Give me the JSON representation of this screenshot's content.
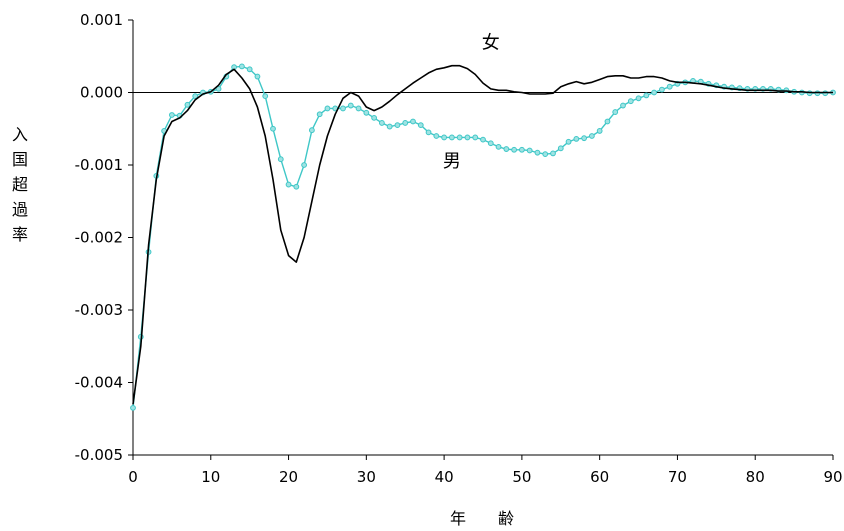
{
  "chart_data": {
    "type": "line",
    "title": "",
    "xlabel": "年　　齢",
    "ylabel": "入国超過率",
    "xlim": [
      0,
      90
    ],
    "ylim": [
      -0.005,
      0.001
    ],
    "xticks": [
      0,
      10,
      20,
      30,
      40,
      50,
      60,
      70,
      80,
      90
    ],
    "xtick_labels": [
      "0",
      "10",
      "20",
      "30",
      "40",
      "50",
      "60",
      "70",
      "80",
      "90"
    ],
    "yticks": [
      0.001,
      0.0,
      -0.001,
      -0.002,
      -0.003,
      -0.004,
      -0.005
    ],
    "ytick_labels": [
      "0.001",
      "0.000",
      "-0.001",
      "-0.002",
      "-0.003",
      "-0.004",
      "-0.005"
    ],
    "zero_line": true,
    "grid": false,
    "series": [
      {
        "name": "女",
        "color": "#000000",
        "marker": "none",
        "label_at": [
          46,
          0.00061
        ],
        "points": [
          [
            0,
            -0.0043
          ],
          [
            1,
            -0.0035
          ],
          [
            2,
            -0.0021
          ],
          [
            3,
            -0.0012
          ],
          [
            4,
            -0.0006
          ],
          [
            5,
            -0.0004
          ],
          [
            6,
            -0.00035
          ],
          [
            7,
            -0.00025
          ],
          [
            8,
            -0.0001
          ],
          [
            9,
            -2e-05
          ],
          [
            10,
            1e-05
          ],
          [
            11,
            0.0001
          ],
          [
            12,
            0.00025
          ],
          [
            13,
            0.00032
          ],
          [
            14,
            0.0002
          ],
          [
            15,
            5e-05
          ],
          [
            16,
            -0.0002
          ],
          [
            17,
            -0.0006
          ],
          [
            18,
            -0.0012
          ],
          [
            19,
            -0.0019
          ],
          [
            20,
            -0.00225
          ],
          [
            21,
            -0.00234
          ],
          [
            22,
            -0.002
          ],
          [
            23,
            -0.0015
          ],
          [
            24,
            -0.001
          ],
          [
            25,
            -0.0006
          ],
          [
            26,
            -0.0003
          ],
          [
            27,
            -8e-05
          ],
          [
            28,
            0.0
          ],
          [
            29,
            -5e-05
          ],
          [
            30,
            -0.0002
          ],
          [
            31,
            -0.00025
          ],
          [
            32,
            -0.0002
          ],
          [
            33,
            -0.00012
          ],
          [
            34,
            -3e-05
          ],
          [
            35,
            5e-05
          ],
          [
            36,
            0.00013
          ],
          [
            37,
            0.0002
          ],
          [
            38,
            0.00027
          ],
          [
            39,
            0.00032
          ],
          [
            40,
            0.00034
          ],
          [
            41,
            0.00037
          ],
          [
            42,
            0.00037
          ],
          [
            43,
            0.00033
          ],
          [
            44,
            0.00025
          ],
          [
            45,
            0.00013
          ],
          [
            46,
            5e-05
          ],
          [
            47,
            3e-05
          ],
          [
            48,
            3e-05
          ],
          [
            49,
            1e-05
          ],
          [
            50,
            0.0
          ],
          [
            51,
            -2e-05
          ],
          [
            52,
            -2e-05
          ],
          [
            53,
            -2e-05
          ],
          [
            54,
            -1e-05
          ],
          [
            55,
            8e-05
          ],
          [
            56,
            0.00012
          ],
          [
            57,
            0.00015
          ],
          [
            58,
            0.00012
          ],
          [
            59,
            0.00014
          ],
          [
            60,
            0.00018
          ],
          [
            61,
            0.00022
          ],
          [
            62,
            0.00023
          ],
          [
            63,
            0.00023
          ],
          [
            64,
            0.0002
          ],
          [
            65,
            0.0002
          ],
          [
            66,
            0.00022
          ],
          [
            67,
            0.00022
          ],
          [
            68,
            0.0002
          ],
          [
            69,
            0.00016
          ],
          [
            70,
            0.00014
          ],
          [
            71,
            0.00014
          ],
          [
            72,
            0.00013
          ],
          [
            73,
            0.00012
          ],
          [
            74,
            0.0001
          ],
          [
            75,
            8e-05
          ],
          [
            76,
            6e-05
          ],
          [
            77,
            5e-05
          ],
          [
            78,
            4e-05
          ],
          [
            79,
            3e-05
          ],
          [
            80,
            3e-05
          ],
          [
            81,
            3e-05
          ],
          [
            82,
            3e-05
          ],
          [
            83,
            2e-05
          ],
          [
            84,
            2e-05
          ],
          [
            85,
            1e-05
          ],
          [
            86,
            1e-05
          ],
          [
            87,
            0.0
          ],
          [
            88,
            0.0
          ],
          [
            89,
            0.0
          ],
          [
            90,
            0.0
          ]
        ]
      },
      {
        "name": "男",
        "color": "#3fc7c7",
        "marker": "circle",
        "label_at": [
          41,
          -0.00103
        ],
        "points": [
          [
            0,
            -0.00435
          ],
          [
            1,
            -0.00337
          ],
          [
            2,
            -0.0022
          ],
          [
            3,
            -0.00115
          ],
          [
            4,
            -0.00053
          ],
          [
            5,
            -0.00031
          ],
          [
            6,
            -0.00032
          ],
          [
            7,
            -0.00017
          ],
          [
            8,
            -5e-05
          ],
          [
            9,
            0.0
          ],
          [
            10,
            1e-05
          ],
          [
            11,
            5e-05
          ],
          [
            12,
            0.00022
          ],
          [
            13,
            0.00035
          ],
          [
            14,
            0.00036
          ],
          [
            15,
            0.00032
          ],
          [
            16,
            0.00022
          ],
          [
            17,
            -5e-05
          ],
          [
            18,
            -0.0005
          ],
          [
            19,
            -0.00092
          ],
          [
            20,
            -0.00127
          ],
          [
            21,
            -0.0013
          ],
          [
            22,
            -0.001
          ],
          [
            23,
            -0.00052
          ],
          [
            24,
            -0.0003
          ],
          [
            25,
            -0.00022
          ],
          [
            26,
            -0.00022
          ],
          [
            27,
            -0.00022
          ],
          [
            28,
            -0.00018
          ],
          [
            29,
            -0.00022
          ],
          [
            30,
            -0.00028
          ],
          [
            31,
            -0.00035
          ],
          [
            32,
            -0.00042
          ],
          [
            33,
            -0.00047
          ],
          [
            34,
            -0.00045
          ],
          [
            35,
            -0.00042
          ],
          [
            36,
            -0.0004
          ],
          [
            37,
            -0.00045
          ],
          [
            38,
            -0.00055
          ],
          [
            39,
            -0.0006
          ],
          [
            40,
            -0.00062
          ],
          [
            41,
            -0.00062
          ],
          [
            42,
            -0.00062
          ],
          [
            43,
            -0.00062
          ],
          [
            44,
            -0.00062
          ],
          [
            45,
            -0.00065
          ],
          [
            46,
            -0.0007
          ],
          [
            47,
            -0.00075
          ],
          [
            48,
            -0.00078
          ],
          [
            49,
            -0.00079
          ],
          [
            50,
            -0.00079
          ],
          [
            51,
            -0.0008
          ],
          [
            52,
            -0.00083
          ],
          [
            53,
            -0.00085
          ],
          [
            54,
            -0.00084
          ],
          [
            55,
            -0.00077
          ],
          [
            56,
            -0.00068
          ],
          [
            57,
            -0.00064
          ],
          [
            58,
            -0.00063
          ],
          [
            59,
            -0.0006
          ],
          [
            60,
            -0.00053
          ],
          [
            61,
            -0.0004
          ],
          [
            62,
            -0.00027
          ],
          [
            63,
            -0.00018
          ],
          [
            64,
            -0.00012
          ],
          [
            65,
            -8e-05
          ],
          [
            66,
            -4e-05
          ],
          [
            67,
            0.0
          ],
          [
            68,
            4e-05
          ],
          [
            69,
            8e-05
          ],
          [
            70,
            0.00012
          ],
          [
            71,
            0.00014
          ],
          [
            72,
            0.00016
          ],
          [
            73,
            0.00015
          ],
          [
            74,
            0.00012
          ],
          [
            75,
            0.0001
          ],
          [
            76,
            8e-05
          ],
          [
            77,
            7e-05
          ],
          [
            78,
            6e-05
          ],
          [
            79,
            5e-05
          ],
          [
            80,
            5e-05
          ],
          [
            81,
            5e-05
          ],
          [
            82,
            5e-05
          ],
          [
            83,
            4e-05
          ],
          [
            84,
            3e-05
          ],
          [
            85,
            1e-05
          ],
          [
            86,
            0.0
          ],
          [
            87,
            -1e-05
          ],
          [
            88,
            -1e-05
          ],
          [
            89,
            -1e-05
          ],
          [
            90,
            0.0
          ]
        ]
      }
    ]
  }
}
